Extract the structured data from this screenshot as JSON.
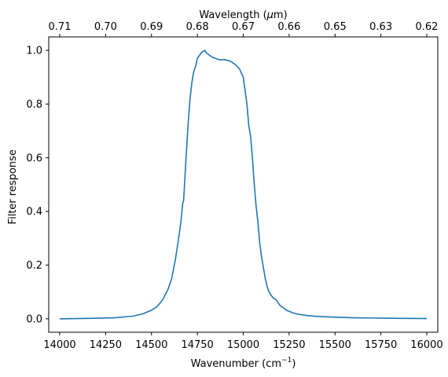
{
  "chart_data": {
    "type": "line",
    "xlabel": "Wavenumber (cm",
    "xlabel_sup": "−1",
    "xlabel_end": ")",
    "x2label": "Wavelength (",
    "x2label_unit": "μ",
    "x2label_end": "m)",
    "ylabel": "Filter response",
    "xlim": [
      13940,
      16060
    ],
    "ylim": [
      -0.05,
      1.05
    ],
    "grid": false,
    "x_ticks": [
      14000,
      14250,
      14500,
      14750,
      15000,
      15250,
      15500,
      15750,
      16000
    ],
    "x_tick_labels": [
      "14000",
      "14250",
      "14500",
      "14750",
      "15000",
      "15250",
      "15500",
      "15750",
      "16000"
    ],
    "y_ticks": [
      0.0,
      0.2,
      0.4,
      0.6,
      0.8,
      1.0
    ],
    "y_tick_labels": [
      "0.0",
      "0.2",
      "0.4",
      "0.6",
      "0.8",
      "1.0"
    ],
    "top_ticks_at_wavenumber": [
      14000,
      14250,
      14500,
      14750,
      15000,
      15250,
      15500,
      15750,
      16000
    ],
    "top_tick_labels": [
      "0.71",
      "0.70",
      "0.69",
      "0.68",
      "0.67",
      "0.66",
      "0.65",
      "0.63",
      "0.62"
    ],
    "series": [
      {
        "color": "#1f77b4",
        "x": [
          14000,
          14200,
          14300,
          14400,
          14450,
          14500,
          14530,
          14560,
          14590,
          14610,
          14630,
          14650,
          14660,
          14670,
          14675,
          14680,
          14690,
          14700,
          14710,
          14720,
          14730,
          14740,
          14750,
          14760,
          14770,
          14780,
          14790,
          14800,
          14810,
          14820,
          14830,
          14840,
          14850,
          14870,
          14900,
          14930,
          14960,
          14980,
          15000,
          15010,
          15020,
          15030,
          15040,
          15050,
          15060,
          15070,
          15080,
          15090,
          15100,
          15110,
          15120,
          15130,
          15140,
          15150,
          15160,
          15170,
          15180,
          15190,
          15200,
          15210,
          15220,
          15230,
          15240,
          15250,
          15270,
          15300,
          15350,
          15400,
          15500,
          15600,
          15700,
          15800,
          16000
        ],
        "y": [
          0.0,
          0.002,
          0.004,
          0.01,
          0.018,
          0.032,
          0.045,
          0.07,
          0.11,
          0.15,
          0.22,
          0.31,
          0.36,
          0.43,
          0.44,
          0.5,
          0.62,
          0.73,
          0.82,
          0.88,
          0.92,
          0.94,
          0.97,
          0.98,
          0.99,
          0.995,
          1.0,
          0.99,
          0.985,
          0.98,
          0.975,
          0.972,
          0.97,
          0.965,
          0.965,
          0.96,
          0.945,
          0.93,
          0.9,
          0.85,
          0.8,
          0.72,
          0.68,
          0.6,
          0.5,
          0.42,
          0.36,
          0.28,
          0.23,
          0.19,
          0.15,
          0.12,
          0.1,
          0.09,
          0.08,
          0.075,
          0.07,
          0.06,
          0.05,
          0.045,
          0.04,
          0.035,
          0.03,
          0.028,
          0.022,
          0.017,
          0.012,
          0.009,
          0.006,
          0.004,
          0.003,
          0.002,
          0.001
        ]
      }
    ]
  }
}
